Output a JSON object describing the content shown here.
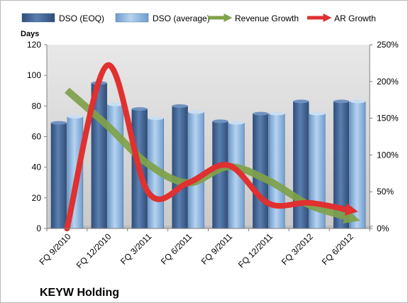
{
  "chart_data": {
    "type": "bar",
    "title": "KEYW Holding",
    "ylabel": "Days",
    "ylim": [
      0,
      120
    ],
    "y_ticks": [
      0,
      20,
      40,
      60,
      80,
      100,
      120
    ],
    "y2lim": [
      0,
      250
    ],
    "y2_ticks": [
      "0%",
      "50%",
      "100%",
      "150%",
      "200%",
      "250%"
    ],
    "categories": [
      "FQ 9/2010",
      "FQ 12/2010",
      "FQ 3/2011",
      "FQ 6/2011",
      "FQ 9/2011",
      "FQ 12/2011",
      "FQ 3/2012",
      "FQ 6/2012"
    ],
    "series": [
      {
        "name": "DSO (EOQ)",
        "kind": "bar",
        "axis": "left",
        "color": "#4a6c9b",
        "values": [
          69,
          95,
          78,
          80,
          70,
          75,
          83,
          83
        ]
      },
      {
        "name": "DSO (average)",
        "kind": "bar",
        "axis": "left",
        "color": "#93b9e1",
        "values": [
          73,
          81,
          72,
          76,
          69,
          75,
          75,
          83
        ]
      },
      {
        "name": "Revenue Growth",
        "kind": "line",
        "axis": "right",
        "color": "#7fa24a",
        "values": [
          188,
          140,
          88,
          62,
          84,
          65,
          32,
          15
        ]
      },
      {
        "name": "AR Growth",
        "kind": "line",
        "axis": "right",
        "color": "#e03030",
        "values": [
          0,
          222,
          50,
          62,
          86,
          34,
          35,
          25
        ]
      }
    ],
    "legend_position": "top",
    "grid": false
  }
}
